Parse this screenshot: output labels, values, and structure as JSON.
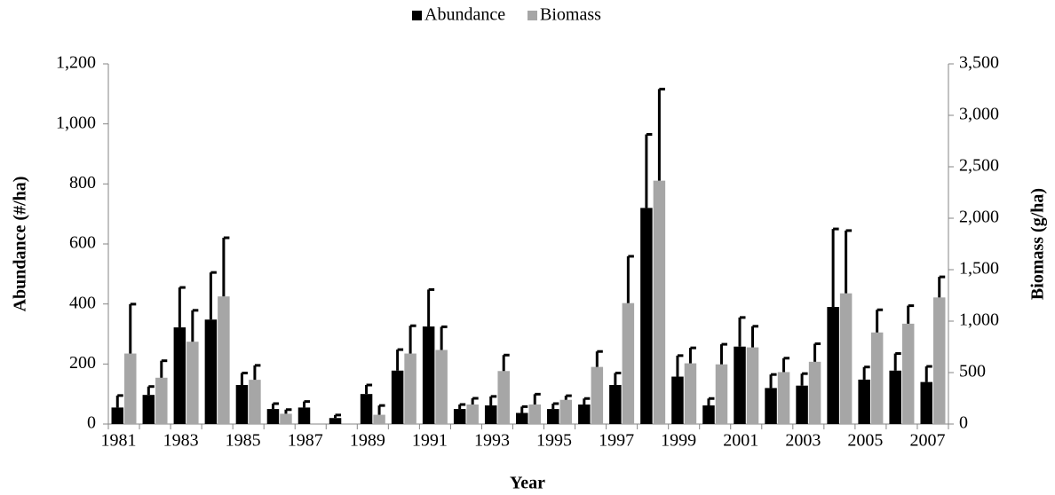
{
  "chart_data": {
    "type": "bar",
    "xlabel": "Year",
    "ylabel": "Abundance (#/ha)",
    "y2label": "Biomass (g/ha)",
    "categories": [
      1981,
      null,
      1983,
      null,
      1985,
      null,
      1987,
      null,
      1989,
      null,
      1991,
      null,
      1993,
      null,
      1995,
      null,
      1997,
      null,
      1999,
      null,
      2001,
      null,
      2003,
      null,
      2005,
      null,
      2007
    ],
    "series": [
      {
        "name": "Abundance",
        "color": "#000000",
        "axis": "y",
        "values": [
          55,
          97,
          322,
          348,
          130,
          50,
          55,
          20,
          100,
          178,
          325,
          50,
          62,
          37,
          50,
          65,
          130,
          720,
          158,
          62,
          258,
          120,
          128,
          390,
          148,
          178,
          140
        ],
        "errors": [
          40,
          28,
          133,
          157,
          40,
          18,
          20,
          10,
          30,
          70,
          123,
          15,
          30,
          21,
          18,
          20,
          40,
          245,
          70,
          23,
          97,
          45,
          40,
          260,
          42,
          57,
          52
        ]
      },
      {
        "name": "Biomass",
        "color": "#a6a6a6",
        "axis": "y2",
        "values": [
          685,
          450,
          800,
          1240,
          430,
          100,
          null,
          null,
          90,
          685,
          720,
          190,
          515,
          190,
          235,
          555,
          1175,
          2365,
          590,
          580,
          745,
          505,
          605,
          1270,
          890,
          975,
          1230
        ],
        "errors": [
          480,
          165,
          305,
          570,
          140,
          40,
          null,
          null,
          90,
          270,
          225,
          60,
          155,
          100,
          40,
          150,
          455,
          890,
          150,
          195,
          205,
          135,
          175,
          610,
          220,
          175,
          200
        ]
      }
    ],
    "ylim": [
      0,
      1200
    ],
    "yticks": [
      0,
      200,
      400,
      600,
      800,
      {
        "value": 1000,
        "label": "1,000"
      },
      {
        "value": 1200,
        "label": "1,200"
      }
    ],
    "y2lim": [
      0,
      3500
    ],
    "y2ticks": [
      0,
      500,
      {
        "value": 1000,
        "label": "1,000"
      },
      {
        "value": 1500,
        "label": "1,500"
      },
      {
        "value": 2000,
        "label": "2,000"
      },
      {
        "value": 2500,
        "label": "2,500"
      },
      {
        "value": 3000,
        "label": "3,000"
      },
      {
        "value": 3500,
        "label": "3,500"
      }
    ],
    "legend": "top"
  }
}
